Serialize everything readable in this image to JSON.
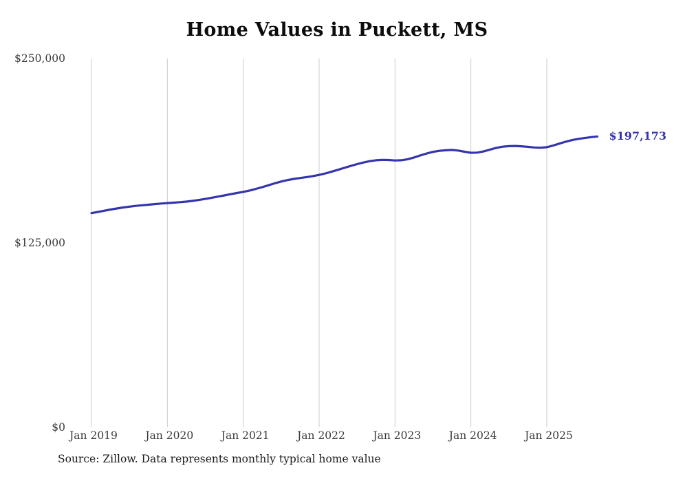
{
  "page": {
    "title": "Home Values in Puckett, MS",
    "source_note": "Source: Zillow. Data represents monthly typical home value"
  },
  "colors": {
    "line": "#3434ae",
    "grid": "#cccccc",
    "tick_text": "#3a3a3a",
    "title_text": "#0d0d0d"
  },
  "chart_data": {
    "type": "line",
    "title": "Home Values in Puckett, MS",
    "series_name": "Typical home value (monthly)",
    "x_start": "Jan 2019",
    "x_end": "Sep 2025",
    "x_interval": "monthly",
    "x_tick_labels": [
      "Jan 2019",
      "Jan 2020",
      "Jan 2021",
      "Jan 2022",
      "Jan 2023",
      "Jan 2024",
      "Jan 2025"
    ],
    "y_ticks": [
      {
        "label": "$0",
        "value": 0
      },
      {
        "label": "$125,000",
        "value": 125000
      },
      {
        "label": "$250,000",
        "value": 250000
      }
    ],
    "ylim": [
      0,
      250000
    ],
    "grid": "vertical",
    "legend": "none",
    "values": [
      145200,
      146000,
      146800,
      147600,
      148300,
      149000,
      149600,
      150100,
      150500,
      150900,
      151300,
      151700,
      152000,
      152300,
      152600,
      153000,
      153500,
      154100,
      154800,
      155600,
      156400,
      157200,
      158000,
      158800,
      159600,
      160500,
      161600,
      162800,
      164100,
      165400,
      166600,
      167600,
      168400,
      169000,
      169600,
      170300,
      171100,
      172100,
      173300,
      174600,
      175900,
      177200,
      178400,
      179500,
      180400,
      181000,
      181300,
      181200,
      180900,
      181000,
      181700,
      182900,
      184300,
      185600,
      186700,
      187400,
      187800,
      188000,
      187600,
      186800,
      186100,
      186200,
      187000,
      188200,
      189400,
      190200,
      190600,
      190700,
      190500,
      190100,
      189700,
      189500,
      189900,
      191000,
      192300,
      193600,
      194700,
      195500,
      196100,
      196700,
      197173
    ],
    "final_value": 197173,
    "final_value_label": "$197,173"
  }
}
